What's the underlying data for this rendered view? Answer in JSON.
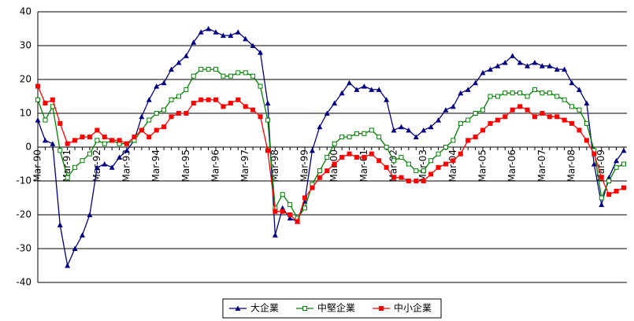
{
  "chart_data": {
    "type": "line",
    "categories": [
      "Mar-90",
      null,
      null,
      null,
      "Mar-91",
      null,
      null,
      null,
      "Mar-92",
      null,
      null,
      null,
      "Mar-93",
      null,
      null,
      null,
      "Mar-94",
      null,
      null,
      null,
      "Mar-95",
      null,
      null,
      null,
      "Mar-96",
      null,
      null,
      null,
      "Mar-97",
      null,
      null,
      null,
      "Mar-98",
      null,
      null,
      null,
      "Mar-99",
      null,
      null,
      null,
      "Mar-00",
      null,
      null,
      null,
      "Mar-01",
      null,
      null,
      null,
      "Mar-02",
      null,
      null,
      null,
      "Mar-03",
      null,
      null,
      null,
      "Mar-04",
      null,
      null,
      null,
      "Mar-05",
      null,
      null,
      null,
      "Mar-06",
      null,
      null,
      null,
      "Mar-07",
      null,
      null,
      null,
      "Mar-08",
      null,
      null,
      null,
      "Mar-09",
      null,
      null,
      null
    ],
    "series": [
      {
        "name": "大企業",
        "color": "#000080",
        "marker": "triangle",
        "values": [
          8,
          2,
          1,
          -23,
          -35,
          -30,
          -26,
          -20,
          -6,
          -5,
          -6,
          -3,
          -1,
          2,
          9,
          14,
          18,
          19,
          23,
          25,
          27,
          31,
          34,
          35,
          34,
          33,
          33,
          34,
          32,
          30,
          28,
          13,
          -26,
          -18,
          -21,
          -22,
          -16,
          -1,
          6,
          10,
          13,
          16,
          19,
          17,
          18,
          17,
          17,
          14,
          5,
          6,
          5,
          3,
          5,
          6,
          8,
          11,
          12,
          16,
          17,
          19,
          22,
          23,
          24,
          25,
          27,
          25,
          24,
          25,
          24,
          24,
          23,
          23,
          19,
          17,
          13,
          -5,
          -17,
          -9,
          -4,
          -1
        ]
      },
      {
        "name": "中堅企業",
        "color": "#008000",
        "marker": "square-open",
        "values": [
          14,
          8,
          12,
          -1,
          -9,
          -6,
          -4,
          -2,
          2,
          1,
          2,
          1,
          1,
          2,
          5,
          8,
          10,
          11,
          14,
          15,
          17,
          21,
          23,
          23,
          23,
          21,
          21,
          22,
          22,
          21,
          18,
          8,
          -18,
          -14,
          -17,
          -21,
          -18,
          -11,
          -7,
          -3,
          1,
          3,
          3,
          4,
          4,
          5,
          3,
          0,
          -4,
          -3,
          -5,
          -7,
          -7,
          -4,
          -2,
          0,
          2,
          7,
          8,
          10,
          11,
          15,
          15,
          16,
          16,
          16,
          15,
          17,
          16,
          16,
          15,
          14,
          12,
          11,
          7,
          -1,
          -15,
          -10,
          -6,
          -5
        ]
      },
      {
        "name": "中小企業",
        "color": "#ff0000",
        "marker": "square",
        "values": [
          18,
          13,
          14,
          7,
          1,
          2,
          3,
          3,
          5,
          3,
          2,
          2,
          1,
          3,
          5,
          3,
          5,
          6,
          9,
          10,
          10,
          13,
          14,
          14,
          14,
          12,
          13,
          14,
          12,
          11,
          9,
          -1,
          -19,
          -19,
          -20,
          -22,
          -15,
          -12,
          -9,
          -7,
          -5,
          -3,
          -2,
          -3,
          -3,
          -2,
          -4,
          -6,
          -9,
          -9,
          -10,
          -10,
          -10,
          -8,
          -6,
          -5,
          -4,
          -2,
          2,
          3,
          5,
          7,
          8,
          9,
          11,
          12,
          11,
          9,
          10,
          9,
          9,
          8,
          7,
          5,
          2,
          -2,
          -9,
          -14,
          -13,
          -12
        ]
      }
    ],
    "ylim": [
      -40,
      40
    ],
    "yticks": [
      -40,
      -30,
      -20,
      -10,
      0,
      10,
      20,
      30,
      40
    ],
    "grid": true,
    "legend": "bottom"
  }
}
